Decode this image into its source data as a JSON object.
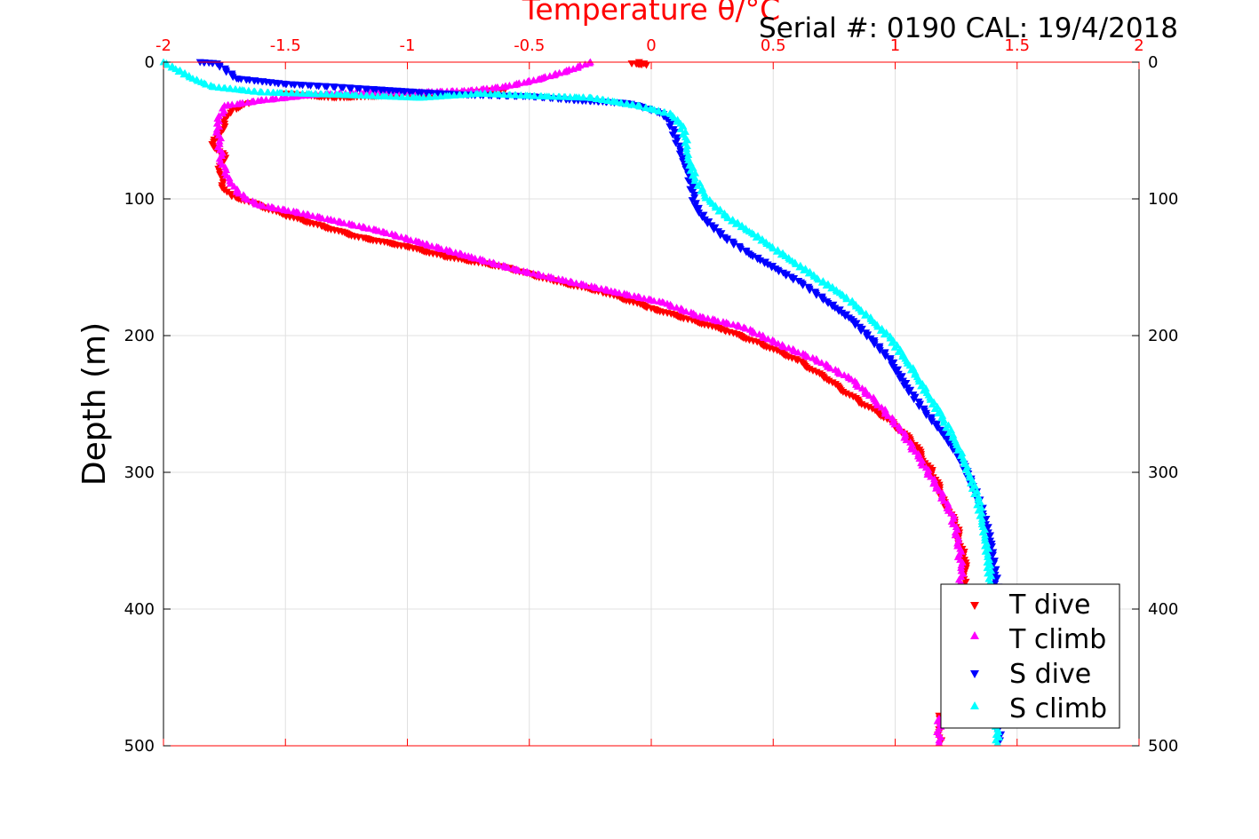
{
  "colors": {
    "t_dive": "#ff0000",
    "t_climb": "#ff00ff",
    "s_dive": "#0000ff",
    "s_climb": "#00ffff",
    "top_axis": "#ff0000",
    "grid": "#e0e0e0"
  },
  "chart_data": {
    "type": "scatter",
    "title": "Temperature θ/°C",
    "annotation": "Serial #: 0190  CAL: 19/4/2018",
    "xlabel": "Temperature θ/°C",
    "ylabel": "Depth (m)",
    "xlim": [
      -2,
      2
    ],
    "ylim": [
      0,
      500
    ],
    "y_reversed": true,
    "grid": true,
    "legend_position": "bottom-right",
    "x_ticks": [
      "-2",
      "-1.5",
      "-1",
      "-0.5",
      "0",
      "0.5",
      "1",
      "1.5",
      "2"
    ],
    "y_ticks": [
      "0",
      "100",
      "200",
      "300",
      "400",
      "500"
    ],
    "series": [
      {
        "name": "T dive",
        "marker": "triangle-down",
        "color_key": "t_dive",
        "points": [
          [
            -0.05,
            0
          ],
          [
            -0.02,
            2
          ],
          [
            -0.08,
            1
          ],
          [
            -1.5,
            23
          ],
          [
            -1.3,
            26
          ],
          [
            -1.0,
            24
          ],
          [
            -0.8,
            23
          ],
          [
            -0.6,
            20
          ],
          [
            -1.65,
            30
          ],
          [
            -1.72,
            35
          ],
          [
            -1.75,
            45
          ],
          [
            -1.78,
            55
          ],
          [
            -1.8,
            60
          ],
          [
            -1.75,
            68
          ],
          [
            -1.77,
            80
          ],
          [
            -1.76,
            90
          ],
          [
            -1.72,
            98
          ],
          [
            -1.65,
            102
          ],
          [
            -1.5,
            112
          ],
          [
            -1.35,
            120
          ],
          [
            -1.2,
            128
          ],
          [
            -1.0,
            135
          ],
          [
            -0.85,
            142
          ],
          [
            -0.6,
            150
          ],
          [
            -0.4,
            160
          ],
          [
            -0.2,
            168
          ],
          [
            0.0,
            180
          ],
          [
            0.15,
            188
          ],
          [
            0.3,
            196
          ],
          [
            0.45,
            206
          ],
          [
            0.6,
            218
          ],
          [
            0.72,
            232
          ],
          [
            0.85,
            248
          ],
          [
            0.98,
            262
          ],
          [
            1.08,
            280
          ],
          [
            1.15,
            300
          ],
          [
            1.2,
            320
          ],
          [
            1.25,
            340
          ],
          [
            1.28,
            360
          ],
          [
            1.29,
            380
          ],
          [
            1.28,
            390
          ],
          [
            1.18,
            478
          ],
          [
            1.18,
            490
          ],
          [
            1.19,
            496
          ]
        ]
      },
      {
        "name": "T climb",
        "marker": "triangle-up",
        "color_key": "t_climb",
        "points": [
          [
            -0.25,
            0
          ],
          [
            -0.32,
            5
          ],
          [
            -0.45,
            12
          ],
          [
            -0.6,
            18
          ],
          [
            -0.75,
            21
          ],
          [
            -0.95,
            22
          ],
          [
            -1.15,
            22
          ],
          [
            -1.4,
            24
          ],
          [
            -1.6,
            28
          ],
          [
            -1.75,
            32
          ],
          [
            -1.78,
            45
          ],
          [
            -1.77,
            60
          ],
          [
            -1.76,
            75
          ],
          [
            -1.73,
            85
          ],
          [
            -1.7,
            95
          ],
          [
            -1.62,
            104
          ],
          [
            -1.45,
            110
          ],
          [
            -1.3,
            116
          ],
          [
            -1.1,
            124
          ],
          [
            -0.95,
            132
          ],
          [
            -0.75,
            142
          ],
          [
            -0.55,
            152
          ],
          [
            -0.35,
            160
          ],
          [
            -0.15,
            168
          ],
          [
            0.05,
            176
          ],
          [
            0.2,
            186
          ],
          [
            0.38,
            194
          ],
          [
            0.52,
            206
          ],
          [
            0.68,
            218
          ],
          [
            0.82,
            232
          ],
          [
            0.92,
            248
          ],
          [
            1.02,
            268
          ],
          [
            1.1,
            290
          ],
          [
            1.17,
            310
          ],
          [
            1.23,
            330
          ],
          [
            1.26,
            350
          ],
          [
            1.27,
            370
          ],
          [
            1.27,
            385
          ],
          [
            1.18,
            480
          ],
          [
            1.18,
            492
          ],
          [
            1.18,
            498
          ]
        ]
      },
      {
        "name": "S dive",
        "marker": "triangle-down",
        "color_key": "s_dive",
        "points": [
          [
            -1.85,
            0
          ],
          [
            -1.78,
            1
          ],
          [
            -1.7,
            12
          ],
          [
            -1.5,
            16
          ],
          [
            -1.3,
            18
          ],
          [
            -0.95,
            22
          ],
          [
            -0.75,
            24
          ],
          [
            -0.5,
            25
          ],
          [
            -0.3,
            28
          ],
          [
            -0.1,
            30
          ],
          [
            -0.05,
            32
          ],
          [
            0.05,
            38
          ],
          [
            0.08,
            45
          ],
          [
            0.12,
            65
          ],
          [
            0.15,
            80
          ],
          [
            0.17,
            95
          ],
          [
            0.18,
            105
          ],
          [
            0.22,
            115
          ],
          [
            0.3,
            128
          ],
          [
            0.4,
            140
          ],
          [
            0.52,
            152
          ],
          [
            0.62,
            162
          ],
          [
            0.72,
            175
          ],
          [
            0.82,
            188
          ],
          [
            0.9,
            202
          ],
          [
            0.98,
            218
          ],
          [
            1.05,
            238
          ],
          [
            1.12,
            255
          ],
          [
            1.2,
            272
          ],
          [
            1.27,
            290
          ],
          [
            1.32,
            310
          ],
          [
            1.36,
            330
          ],
          [
            1.39,
            350
          ],
          [
            1.41,
            375
          ],
          [
            1.42,
            390
          ],
          [
            1.42,
            470
          ],
          [
            1.42,
            485
          ],
          [
            1.43,
            496
          ]
        ]
      },
      {
        "name": "S climb",
        "marker": "triangle-up",
        "color_key": "s_climb",
        "points": [
          [
            -2.0,
            0
          ],
          [
            -1.95,
            5
          ],
          [
            -1.88,
            12
          ],
          [
            -1.8,
            18
          ],
          [
            -1.6,
            22
          ],
          [
            -1.25,
            24
          ],
          [
            -0.95,
            26
          ],
          [
            -0.7,
            23
          ],
          [
            -0.45,
            25
          ],
          [
            -0.25,
            26
          ],
          [
            -0.05,
            32
          ],
          [
            0.08,
            38
          ],
          [
            0.12,
            45
          ],
          [
            0.14,
            55
          ],
          [
            0.15,
            70
          ],
          [
            0.18,
            85
          ],
          [
            0.22,
            98
          ],
          [
            0.3,
            112
          ],
          [
            0.42,
            126
          ],
          [
            0.55,
            142
          ],
          [
            0.68,
            158
          ],
          [
            0.8,
            172
          ],
          [
            0.9,
            188
          ],
          [
            0.98,
            202
          ],
          [
            1.06,
            222
          ],
          [
            1.13,
            242
          ],
          [
            1.2,
            262
          ],
          [
            1.26,
            282
          ],
          [
            1.3,
            300
          ],
          [
            1.34,
            320
          ],
          [
            1.36,
            340
          ],
          [
            1.38,
            360
          ],
          [
            1.39,
            380
          ],
          [
            1.41,
            470
          ],
          [
            1.42,
            488
          ],
          [
            1.42,
            498
          ]
        ]
      }
    ]
  }
}
